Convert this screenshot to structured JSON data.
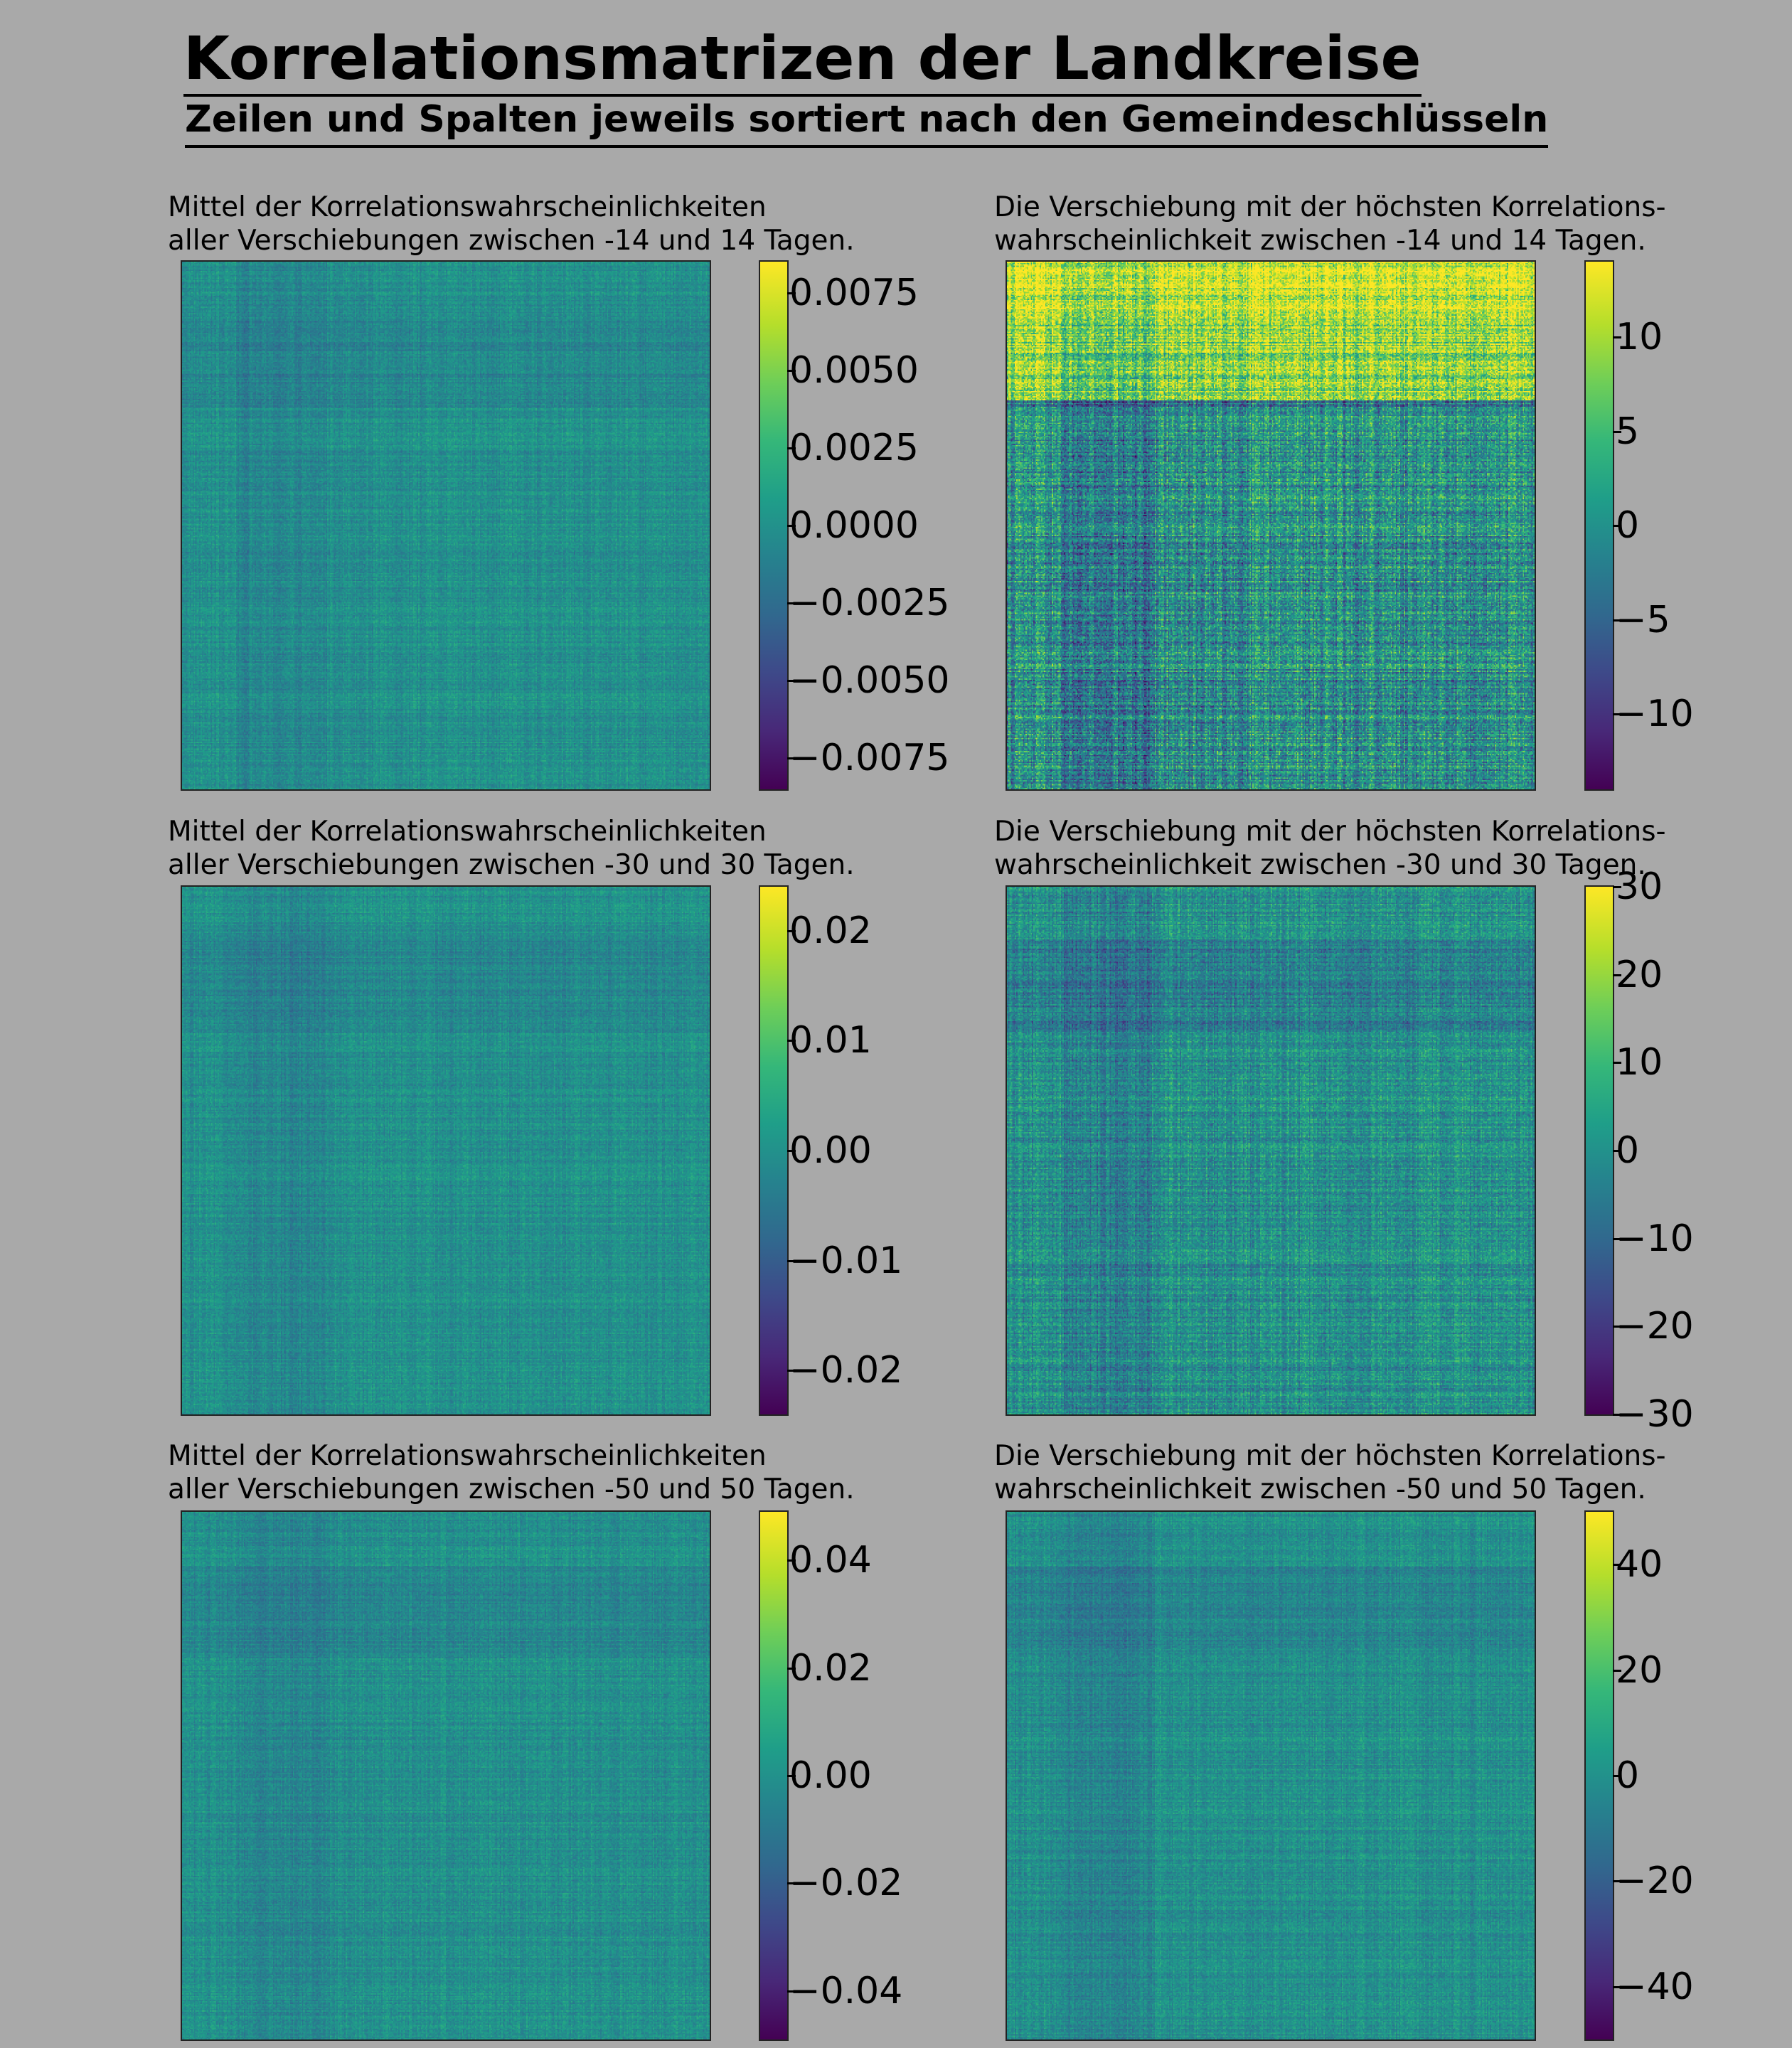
{
  "title": "Korrelationsmatrizen der Landkreise",
  "subtitle": "Zeilen und Spalten jeweils sortiert nach den Gemeindeschlüsseln",
  "chart_data": [
    {
      "type": "heatmap",
      "title_line1": "Mittel der Korrelationswahrscheinlichkeiten",
      "title_line2": "aller Verschiebungen zwischen -14 und 14 Tagen.",
      "colormap": "viridis",
      "vmin": -0.0085,
      "vmax": 0.0085,
      "colorbar_ticks": [
        0.0075,
        0.005,
        0.0025,
        0.0,
        -0.0025,
        -0.005,
        -0.0075
      ],
      "colorbar_tick_labels": [
        "0.0075",
        "0.0050",
        "0.0025",
        "0.0000",
        "−0.0025",
        "−0.0050",
        "−0.0075"
      ]
    },
    {
      "type": "heatmap",
      "title_line1": "Die Verschiebung mit der höchsten Korrelations-",
      "title_line2": "wahrscheinlichkeit zwischen -14 und 14 Tagen.",
      "colormap": "viridis",
      "vmin": -14,
      "vmax": 14,
      "colorbar_ticks": [
        10,
        5,
        0,
        -5,
        -10
      ],
      "colorbar_tick_labels": [
        "10",
        "5",
        "0",
        "−5",
        "−10"
      ]
    },
    {
      "type": "heatmap",
      "title_line1": "Mittel der Korrelationswahrscheinlichkeiten",
      "title_line2": "aller Verschiebungen zwischen -30 und 30 Tagen.",
      "colormap": "viridis",
      "vmin": -0.024,
      "vmax": 0.024,
      "colorbar_ticks": [
        0.02,
        0.01,
        0.0,
        -0.01,
        -0.02
      ],
      "colorbar_tick_labels": [
        "0.02",
        "0.01",
        "0.00",
        "−0.01",
        "−0.02"
      ]
    },
    {
      "type": "heatmap",
      "title_line1": "Die Verschiebung mit der höchsten Korrelations-",
      "title_line2": "wahrscheinlichkeit zwischen -30 und 30 Tagen.",
      "colormap": "viridis",
      "vmin": -30,
      "vmax": 30,
      "colorbar_ticks": [
        30,
        20,
        10,
        0,
        -10,
        -20,
        -30
      ],
      "colorbar_tick_labels": [
        "30",
        "20",
        "10",
        "0",
        "−10",
        "−20",
        "−30"
      ]
    },
    {
      "type": "heatmap",
      "title_line1": "Mittel der Korrelationswahrscheinlichkeiten",
      "title_line2": "aller Verschiebungen zwischen -50 und 50 Tagen.",
      "colormap": "viridis",
      "vmin": -0.049,
      "vmax": 0.049,
      "colorbar_ticks": [
        0.04,
        0.02,
        0.0,
        -0.02,
        -0.04
      ],
      "colorbar_tick_labels": [
        "0.04",
        "0.02",
        "0.00",
        "−0.02",
        "−0.04"
      ]
    },
    {
      "type": "heatmap",
      "title_line1": "Die Verschiebung mit der höchsten Korrelations-",
      "title_line2": "wahrscheinlichkeit zwischen -50 und 50 Tagen.",
      "colormap": "viridis",
      "vmin": -50,
      "vmax": 50,
      "colorbar_ticks": [
        40,
        20,
        0,
        -20,
        -40
      ],
      "colorbar_tick_labels": [
        "40",
        "20",
        "0",
        "−20",
        "−40"
      ]
    }
  ]
}
